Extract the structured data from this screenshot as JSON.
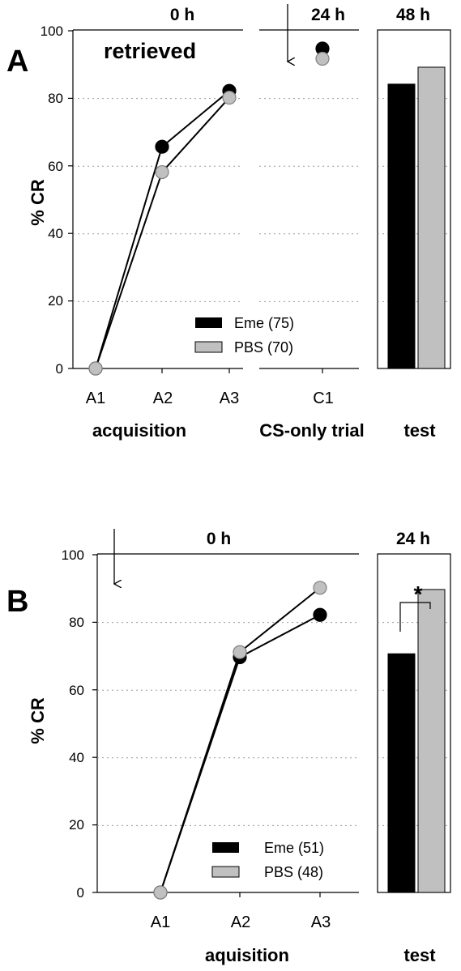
{
  "chart_data": [
    {
      "panel_label": "A",
      "type": "line",
      "ylabel": "% CR",
      "ylim": [
        0,
        100
      ],
      "yticks": [
        0,
        20,
        40,
        60,
        80,
        100
      ],
      "grid": "horizontal dotted",
      "time_labels": [
        "0 h",
        "24 h",
        "48 h"
      ],
      "annotation": "retrieved",
      "groups": [
        {
          "label": "acquisition",
          "categories": [
            "A1",
            "A2",
            "A3"
          ]
        },
        {
          "label": "CS-only trial",
          "categories": [
            "C1"
          ]
        },
        {
          "label": "test",
          "categories": []
        }
      ],
      "series": [
        {
          "name": "Eme (75)",
          "color": "#000000",
          "values": [
            0,
            65.5,
            82
          ],
          "C1": 94.5,
          "test": 84
        },
        {
          "name": "PBS (70)",
          "color": "#c0c0c0",
          "values": [
            0,
            58,
            80
          ],
          "C1": 91.5,
          "test": 89
        }
      ],
      "legend": "bottom-right",
      "arrow": "before C1"
    },
    {
      "panel_label": "B",
      "type": "line",
      "ylabel": "% CR",
      "ylim": [
        0,
        100
      ],
      "yticks": [
        0,
        20,
        40,
        60,
        80,
        100
      ],
      "grid": "horizontal dotted",
      "time_labels": [
        "0 h",
        "24 h"
      ],
      "groups": [
        {
          "label": "aquisition",
          "categories": [
            "A1",
            "A2",
            "A3"
          ]
        },
        {
          "label": "test",
          "categories": []
        }
      ],
      "series": [
        {
          "name": "Eme (51)",
          "color": "#000000",
          "values": [
            0,
            69.5,
            82
          ],
          "test": 70.5
        },
        {
          "name": "PBS (48)",
          "color": "#c0c0c0",
          "values": [
            0,
            71,
            90
          ],
          "test": 89.5
        }
      ],
      "significance": "*",
      "legend": "bottom-right",
      "arrow": "before A1"
    }
  ]
}
